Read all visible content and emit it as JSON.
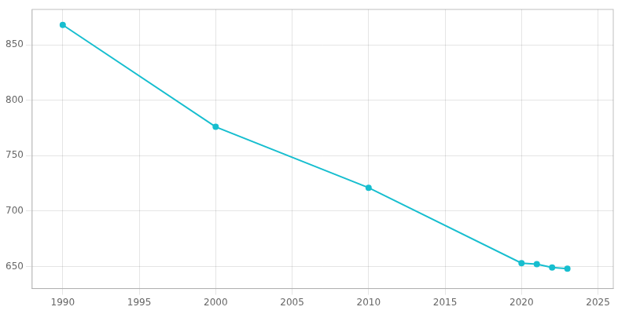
{
  "chart_data": {
    "type": "line",
    "x": [
      1990,
      2000,
      2010,
      2020,
      2021,
      2022,
      2023
    ],
    "values": [
      868,
      776,
      721,
      653,
      652,
      649,
      648
    ],
    "color": "#17becf",
    "marker": "circle",
    "xlim": [
      1988,
      2026
    ],
    "ylim": [
      630,
      882
    ],
    "xticks": [
      1990,
      1995,
      2000,
      2005,
      2010,
      2015,
      2020,
      2025
    ],
    "yticks": [
      650,
      700,
      750,
      800,
      850
    ],
    "grid": true
  }
}
